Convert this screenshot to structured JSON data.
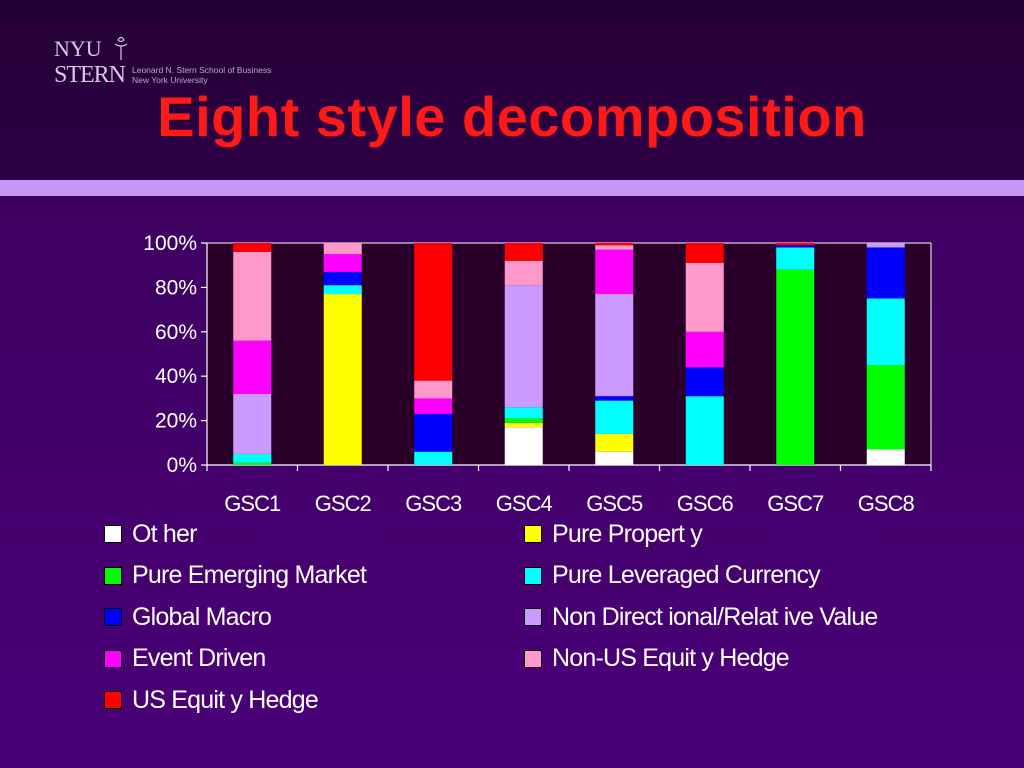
{
  "logo": {
    "name_line1": "NYU",
    "name_line2": "STERN",
    "subtitle_line1": "Leonard N. Stern School of Business",
    "subtitle_line2": "New York University"
  },
  "slide": {
    "title": "Eight style decomposition"
  },
  "colors": {
    "background": "#4a0078",
    "title": "#ff1a1a",
    "band": "#c796f5"
  },
  "chart_data": {
    "type": "bar",
    "stacked": true,
    "percent": true,
    "categories": [
      "GSC1",
      "GSC2",
      "GSC3",
      "GSC4",
      "GSC5",
      "GSC6",
      "GSC7",
      "GSC8"
    ],
    "y_ticks": [
      "0%",
      "20%",
      "40%",
      "60%",
      "80%",
      "100%"
    ],
    "ylim": [
      0,
      100
    ],
    "legend_position": "bottom",
    "series": [
      {
        "name": "Other",
        "color": "#ffffff",
        "values": [
          0,
          0,
          0,
          17,
          6,
          0,
          0,
          7
        ]
      },
      {
        "name": "Pure Property",
        "color": "#ffff00",
        "values": [
          0,
          77,
          0,
          2,
          8,
          0,
          0,
          0
        ]
      },
      {
        "name": "Pure Emerging Market",
        "color": "#00ff00",
        "values": [
          1,
          0,
          0,
          2,
          0,
          0,
          88,
          38
        ]
      },
      {
        "name": "Pure Leveraged Currency",
        "color": "#00ffff",
        "values": [
          4,
          4,
          6,
          5,
          15,
          31,
          10,
          30
        ]
      },
      {
        "name": "Global Macro",
        "color": "#0000ff",
        "values": [
          0,
          6,
          17,
          0,
          2,
          13,
          1,
          23
        ]
      },
      {
        "name": "Non Directional/Relative Value",
        "color": "#cc99ff",
        "values": [
          27,
          0,
          0,
          55,
          46,
          0,
          0,
          2
        ]
      },
      {
        "name": "Event Driven",
        "color": "#ff00ff",
        "values": [
          24,
          8,
          7,
          0,
          20,
          16,
          0,
          0
        ]
      },
      {
        "name": "Non-US Equity Hedge",
        "color": "#ff99cc",
        "values": [
          40,
          5,
          8,
          11,
          2,
          31,
          0,
          0
        ]
      },
      {
        "name": "US Equity Hedge",
        "color": "#ff0000",
        "values": [
          4,
          0,
          62,
          8,
          1,
          9,
          1,
          0
        ]
      }
    ]
  },
  "legend": {
    "left": [
      {
        "label": "Ot her",
        "color": "#ffffff"
      },
      {
        "label": "Pure Emerging Market",
        "color": "#00ff00"
      },
      {
        "label": "Global Macro",
        "color": "#0000ff"
      },
      {
        "label": "Event  Driven",
        "color": "#ff00ff"
      },
      {
        "label": "US Equit y Hedge",
        "color": "#ff0000"
      }
    ],
    "right": [
      {
        "label": "Pure Propert y",
        "color": "#ffff00"
      },
      {
        "label": "Pure Leveraged Currency",
        "color": "#00ffff"
      },
      {
        "label": "Non Direct ional/Relat ive Value",
        "color": "#cc99ff"
      },
      {
        "label": "Non-US Equit y Hedge",
        "color": "#ff99cc"
      }
    ]
  }
}
